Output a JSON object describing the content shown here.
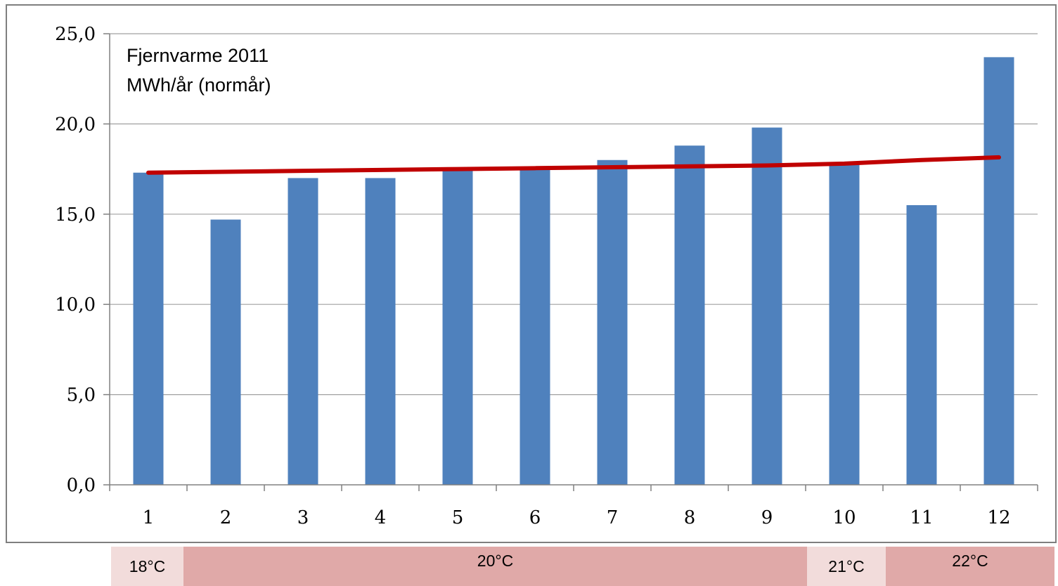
{
  "chart_data": {
    "type": "bar",
    "title_lines": [
      "Fjernvarme 2011",
      "MWh/år (normår)"
    ],
    "categories": [
      "1",
      "2",
      "3",
      "4",
      "5",
      "6",
      "7",
      "8",
      "9",
      "10",
      "11",
      "12"
    ],
    "series": [
      {
        "type": "bar",
        "values": [
          17.3,
          14.7,
          17.0,
          17.0,
          17.5,
          17.5,
          18.0,
          18.8,
          19.8,
          17.8,
          15.5,
          23.7
        ]
      },
      {
        "type": "line",
        "values": [
          17.3,
          17.35,
          17.4,
          17.45,
          17.5,
          17.55,
          17.6,
          17.65,
          17.7,
          17.8,
          18.0,
          18.15
        ]
      }
    ],
    "ylim": [
      0,
      25
    ],
    "yticks": [
      "0,0",
      "5,0",
      "10,0",
      "15,0",
      "20,0",
      "25,0"
    ],
    "grid": true,
    "colors": {
      "bar": "#4f81bd",
      "line": "#c00000",
      "grid": "#a0a0a0"
    }
  },
  "temperature_bands": [
    {
      "label": "18°C",
      "color": "#f2dcdb"
    },
    {
      "label": "20°C",
      "color": "#e0a9a8"
    },
    {
      "label": "21°C",
      "color": "#f2dcdb"
    },
    {
      "label": "22°C",
      "color": "#e0a9a8"
    }
  ]
}
